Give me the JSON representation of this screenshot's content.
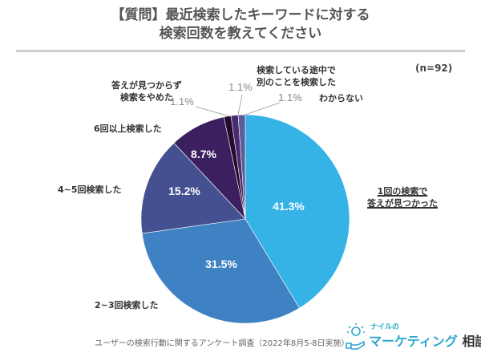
{
  "chart_data": {
    "type": "pie",
    "title": "【質問】最近検索したキーワードに対する検索回数を教えてください",
    "title_lines": [
      "【質問】最近検索したキーワードに対する",
      "検索回数を教えてください"
    ],
    "sample": "(n=92)",
    "slices": [
      {
        "label": "1回の検索で答えが見つかった",
        "label_lines": [
          "1回の検索で",
          "答えが見つかった"
        ],
        "value": 41.3,
        "display": "41.3%",
        "color": "#35b3e6"
      },
      {
        "label": "2~3回検索した",
        "label_lines": [
          "2~3回検索した"
        ],
        "value": 31.5,
        "display": "31.5%",
        "color": "#3f82c4"
      },
      {
        "label": "4~5回検索した",
        "label_lines": [
          "4~5回検索した"
        ],
        "value": 15.2,
        "display": "15.2%",
        "color": "#44508f"
      },
      {
        "label": "6回以上検索した",
        "label_lines": [
          "6回以上検索した"
        ],
        "value": 8.7,
        "display": "8.7%",
        "color": "#3b1f5e"
      },
      {
        "label": "答えが見つからず検索をやめた",
        "label_lines": [
          "答えが見つからず",
          "検索をやめた"
        ],
        "value": 1.1,
        "display": "1.1%",
        "color": "#240b2e"
      },
      {
        "label": "検索している途中で別のことを検索した",
        "label_lines": [
          "検索している途中で",
          "別のことを検索した"
        ],
        "value": 1.1,
        "display": "1.1%",
        "color": "#4a2a70"
      },
      {
        "label": "わからない",
        "label_lines": [
          "わからない"
        ],
        "value": 1.1,
        "display": "1.1%",
        "color": "#5a5e9a"
      }
    ],
    "start_angle": "12 o'clock",
    "direction": "clockwise"
  },
  "footer": {
    "source": "ユーザーの検索行動に関するアンケート調査（2022年8月5-8日実施）",
    "logo_small": "ナイルの",
    "logo_main": "マーケティング",
    "logo_suffix": "相談室"
  },
  "colors": {
    "title": "#555555",
    "rule": "#ccd0d3",
    "logo": "#2aa6cf"
  }
}
